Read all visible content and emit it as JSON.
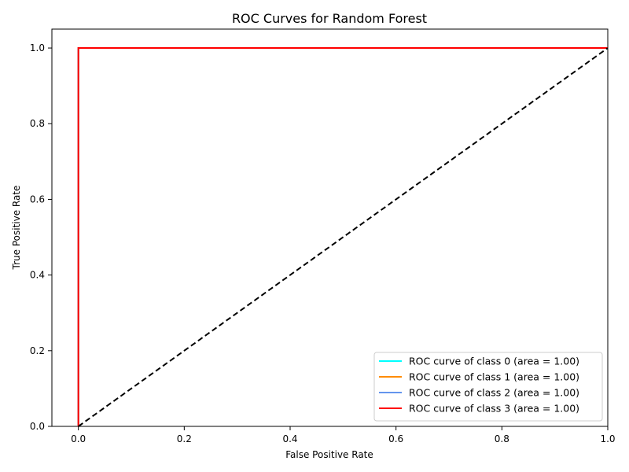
{
  "chart_data": {
    "type": "line",
    "title": "ROC Curves for Random Forest",
    "xlabel": "False Positive Rate",
    "ylabel": "True Positive Rate",
    "xlim": [
      -0.05,
      1.0
    ],
    "ylim": [
      0.0,
      1.05
    ],
    "xticks": [
      0.0,
      0.2,
      0.4,
      0.6,
      0.8,
      1.0
    ],
    "xtick_labels": [
      "0.0",
      "0.2",
      "0.4",
      "0.6",
      "0.8",
      "1.0"
    ],
    "yticks": [
      0.0,
      0.2,
      0.4,
      0.6,
      0.8,
      1.0
    ],
    "ytick_labels": [
      "0.0",
      "0.2",
      "0.4",
      "0.6",
      "0.8",
      "1.0"
    ],
    "grid": false,
    "legend_position": "lower-right",
    "series": [
      {
        "name": "ROC curve of class 0 (area = 1.00)",
        "color": "#00ffff",
        "x": [
          0.0,
          0.0,
          1.0
        ],
        "y": [
          0.0,
          1.0,
          1.0
        ]
      },
      {
        "name": "ROC curve of class 1 (area = 1.00)",
        "color": "#ff8c00",
        "x": [
          0.0,
          0.0,
          1.0
        ],
        "y": [
          0.0,
          1.0,
          1.0
        ]
      },
      {
        "name": "ROC curve of class 2 (area = 1.00)",
        "color": "#6495ed",
        "x": [
          0.0,
          0.0,
          1.0
        ],
        "y": [
          0.0,
          1.0,
          1.0
        ]
      },
      {
        "name": "ROC curve of class 3 (area = 1.00)",
        "color": "#ff0000",
        "x": [
          0.0,
          0.0,
          1.0
        ],
        "y": [
          0.0,
          1.0,
          1.0
        ]
      }
    ],
    "reference_line": {
      "color": "#000000",
      "style": "dashed",
      "x": [
        0.0,
        1.0
      ],
      "y": [
        0.0,
        1.0
      ]
    }
  }
}
